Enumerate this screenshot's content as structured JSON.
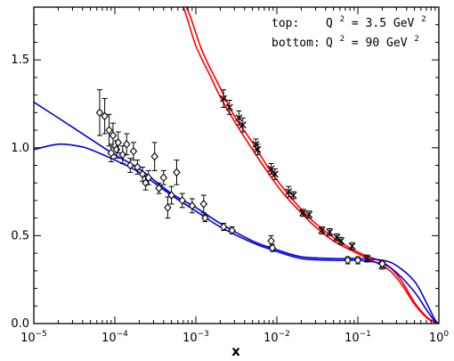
{
  "chart_data": {
    "type": "scatter",
    "title": "",
    "xlabel": "x",
    "ylabel": "",
    "xscale": "log",
    "xlim": [
      1e-05,
      1
    ],
    "ylim": [
      0,
      1.8
    ],
    "grid": false,
    "x_ticks": [
      {
        "value": 1e-05,
        "base": "10",
        "exp": "−5"
      },
      {
        "value": 0.0001,
        "base": "10",
        "exp": "−4"
      },
      {
        "value": 0.001,
        "base": "10",
        "exp": "−3"
      },
      {
        "value": 0.01,
        "base": "10",
        "exp": "−2"
      },
      {
        "value": 0.1,
        "base": "10",
        "exp": "−1"
      },
      {
        "value": 1,
        "base": "10",
        "exp": "0"
      }
    ],
    "y_ticks": [
      {
        "value": 0,
        "label": "0.0"
      },
      {
        "value": 0.5,
        "label": "0.5"
      },
      {
        "value": 1.0,
        "label": "1.0"
      },
      {
        "value": 1.5,
        "label": "1.5"
      }
    ],
    "annotations": {
      "top_label": "top:",
      "top_q": "Q",
      "top_sup": "2",
      "top_value": " = 3.5 GeV",
      "top_unit_sup": "2",
      "bottom_label": "bottom:",
      "bottom_q": "Q",
      "bottom_sup": "2",
      "bottom_value": " = 90 GeV",
      "bottom_unit_sup": "2"
    },
    "series": [
      {
        "color": "#ff0000",
        "kind": "band",
        "upper": [
          [
            0.0003,
            2.0
          ],
          [
            0.00055,
            1.9
          ],
          [
            0.0008,
            1.78
          ],
          [
            0.0012,
            1.55
          ],
          [
            0.002,
            1.34
          ],
          [
            0.003,
            1.18
          ],
          [
            0.005,
            1.03
          ],
          [
            0.008,
            0.88
          ],
          [
            0.012,
            0.77
          ],
          [
            0.02,
            0.65
          ],
          [
            0.03,
            0.57
          ],
          [
            0.05,
            0.49
          ],
          [
            0.08,
            0.43
          ],
          [
            0.12,
            0.39
          ],
          [
            0.18,
            0.36
          ],
          [
            0.25,
            0.32
          ],
          [
            0.35,
            0.24
          ],
          [
            0.5,
            0.12
          ],
          [
            0.7,
            0.04
          ],
          [
            0.9,
            0.005
          ]
        ],
        "lower": [
          [
            0.0003,
            2.0
          ],
          [
            0.0005,
            1.9
          ],
          [
            0.0007,
            1.8
          ],
          [
            0.001,
            1.58
          ],
          [
            0.0015,
            1.41
          ],
          [
            0.002,
            1.29
          ],
          [
            0.003,
            1.15
          ],
          [
            0.005,
            0.99
          ],
          [
            0.008,
            0.85
          ],
          [
            0.012,
            0.74
          ],
          [
            0.02,
            0.63
          ],
          [
            0.03,
            0.55
          ],
          [
            0.05,
            0.47
          ],
          [
            0.08,
            0.42
          ],
          [
            0.12,
            0.38
          ],
          [
            0.18,
            0.34
          ],
          [
            0.25,
            0.3
          ],
          [
            0.35,
            0.22
          ],
          [
            0.5,
            0.11
          ],
          [
            0.7,
            0.035
          ],
          [
            0.9,
            0.005
          ]
        ]
      },
      {
        "color": "#0000dd",
        "kind": "band",
        "upper": [
          [
            1e-05,
            1.26
          ],
          [
            2e-05,
            1.17
          ],
          [
            5e-05,
            1.05
          ],
          [
            0.0001,
            0.96
          ],
          [
            0.0002,
            0.88
          ],
          [
            0.0005,
            0.74
          ],
          [
            0.001,
            0.66
          ],
          [
            0.002,
            0.57
          ],
          [
            0.005,
            0.47
          ],
          [
            0.01,
            0.42
          ],
          [
            0.02,
            0.38
          ],
          [
            0.05,
            0.37
          ],
          [
            0.1,
            0.37
          ],
          [
            0.2,
            0.36
          ],
          [
            0.3,
            0.33
          ],
          [
            0.5,
            0.24
          ],
          [
            0.7,
            0.12
          ],
          [
            0.9,
            0.02
          ],
          [
            1,
            0.0
          ]
        ],
        "lower": [
          [
            1e-05,
            0.99
          ],
          [
            2e-05,
            1.02
          ],
          [
            3.5e-05,
            1.01
          ],
          [
            5e-05,
            0.99
          ],
          [
            0.0001,
            0.93
          ],
          [
            0.0002,
            0.86
          ],
          [
            0.0005,
            0.73
          ],
          [
            0.001,
            0.64
          ],
          [
            0.002,
            0.55
          ],
          [
            0.005,
            0.46
          ],
          [
            0.01,
            0.41
          ],
          [
            0.02,
            0.37
          ],
          [
            0.05,
            0.36
          ],
          [
            0.1,
            0.36
          ],
          [
            0.2,
            0.34
          ],
          [
            0.3,
            0.29
          ],
          [
            0.5,
            0.18
          ],
          [
            0.7,
            0.08
          ],
          [
            0.9,
            0.01
          ],
          [
            1,
            0.0
          ]
        ]
      }
    ],
    "points_top": [
      {
        "x": 0.0022,
        "y": 1.28,
        "err": 0.05
      },
      {
        "x": 0.0026,
        "y": 1.23,
        "err": 0.04
      },
      {
        "x": 0.0034,
        "y": 1.17,
        "err": 0.04
      },
      {
        "x": 0.0038,
        "y": 1.13,
        "err": 0.04
      },
      {
        "x": 0.0055,
        "y": 1.02,
        "err": 0.03
      },
      {
        "x": 0.0058,
        "y": 0.99,
        "err": 0.03
      },
      {
        "x": 0.0085,
        "y": 0.88,
        "err": 0.03
      },
      {
        "x": 0.0095,
        "y": 0.85,
        "err": 0.03
      },
      {
        "x": 0.014,
        "y": 0.75,
        "err": 0.03
      },
      {
        "x": 0.016,
        "y": 0.73,
        "err": 0.02
      },
      {
        "x": 0.021,
        "y": 0.63,
        "err": 0.02
      },
      {
        "x": 0.025,
        "y": 0.62,
        "err": 0.02
      },
      {
        "x": 0.036,
        "y": 0.53,
        "err": 0.02
      },
      {
        "x": 0.045,
        "y": 0.52,
        "err": 0.02
      },
      {
        "x": 0.055,
        "y": 0.49,
        "err": 0.02
      },
      {
        "x": 0.062,
        "y": 0.47,
        "err": 0.02
      },
      {
        "x": 0.085,
        "y": 0.44,
        "err": 0.02
      },
      {
        "x": 0.13,
        "y": 0.37,
        "err": 0.02
      },
      {
        "x": 0.2,
        "y": 0.33,
        "err": 0.02
      }
    ],
    "points_bottom": [
      {
        "x": 6.5e-05,
        "y": 1.2,
        "err": 0.13
      },
      {
        "x": 7.5e-05,
        "y": 1.18,
        "err": 0.1
      },
      {
        "x": 8.5e-05,
        "y": 1.1,
        "err": 0.09
      },
      {
        "x": 9e-05,
        "y": 0.97,
        "err": 0.05
      },
      {
        "x": 9.5e-05,
        "y": 1.07,
        "err": 0.07
      },
      {
        "x": 0.000105,
        "y": 0.99,
        "err": 0.05
      },
      {
        "x": 0.00011,
        "y": 1.03,
        "err": 0.06
      },
      {
        "x": 0.000125,
        "y": 0.96,
        "err": 0.05
      },
      {
        "x": 0.00014,
        "y": 1.02,
        "err": 0.06
      },
      {
        "x": 0.000155,
        "y": 0.9,
        "err": 0.04
      },
      {
        "x": 0.00017,
        "y": 0.98,
        "err": 0.05
      },
      {
        "x": 0.00019,
        "y": 0.89,
        "err": 0.04
      },
      {
        "x": 0.00022,
        "y": 0.85,
        "err": 0.04
      },
      {
        "x": 0.00024,
        "y": 0.8,
        "err": 0.04
      },
      {
        "x": 0.00026,
        "y": 0.83,
        "err": 0.04
      },
      {
        "x": 0.00031,
        "y": 0.95,
        "err": 0.08
      },
      {
        "x": 0.00035,
        "y": 0.77,
        "err": 0.03
      },
      {
        "x": 0.0004,
        "y": 0.83,
        "err": 0.04
      },
      {
        "x": 0.00045,
        "y": 0.66,
        "err": 0.06
      },
      {
        "x": 0.0005,
        "y": 0.73,
        "err": 0.05
      },
      {
        "x": 0.00058,
        "y": 0.86,
        "err": 0.07
      },
      {
        "x": 0.00068,
        "y": 0.7,
        "err": 0.04
      },
      {
        "x": 0.0009,
        "y": 0.67,
        "err": 0.04
      },
      {
        "x": 0.00125,
        "y": 0.68,
        "err": 0.05
      },
      {
        "x": 0.0013,
        "y": 0.6,
        "err": 0.02
      },
      {
        "x": 0.0022,
        "y": 0.55,
        "err": 0.02
      },
      {
        "x": 0.0028,
        "y": 0.53,
        "err": 0.02
      },
      {
        "x": 0.0085,
        "y": 0.47,
        "err": 0.03
      },
      {
        "x": 0.0088,
        "y": 0.43,
        "err": 0.02
      },
      {
        "x": 0.075,
        "y": 0.36,
        "err": 0.02
      },
      {
        "x": 0.1,
        "y": 0.36,
        "err": 0.02
      },
      {
        "x": 0.2,
        "y": 0.34,
        "err": 0.02
      }
    ]
  }
}
